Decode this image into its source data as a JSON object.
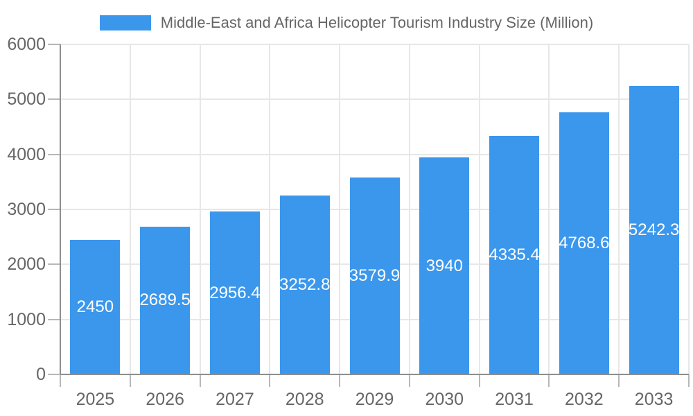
{
  "chart_data": {
    "type": "bar",
    "title": "Middle-East and Africa Helicopter Tourism Industry Size (Million)",
    "categories": [
      "2025",
      "2026",
      "2027",
      "2028",
      "2029",
      "2030",
      "2031",
      "2032",
      "2033"
    ],
    "values": [
      2450,
      2689.5,
      2956.4,
      3252.8,
      3579.9,
      3940,
      4335.4,
      4768.6,
      5242.3
    ],
    "series_name": "Middle-East and Africa Helicopter Tourism Industry Size (Million)",
    "xlabel": "",
    "ylabel": "",
    "ylim": [
      0,
      6000
    ],
    "ytick_step": 1000,
    "ytick_labels": [
      "0",
      "1000",
      "2000",
      "3000",
      "4000",
      "5000",
      "6000"
    ],
    "grid": true,
    "legend_position": "top",
    "value_labels_inside_bars": true
  },
  "colors": {
    "bar": "#3B97EC",
    "bar_value_text": "#ffffff",
    "axis_text": "#666666",
    "legend_text": "#666666",
    "gridline": "#e7e7e7",
    "axis_line": "#8e8e8e",
    "tick_mark": "#b8b8b8",
    "background": "#ffffff"
  }
}
